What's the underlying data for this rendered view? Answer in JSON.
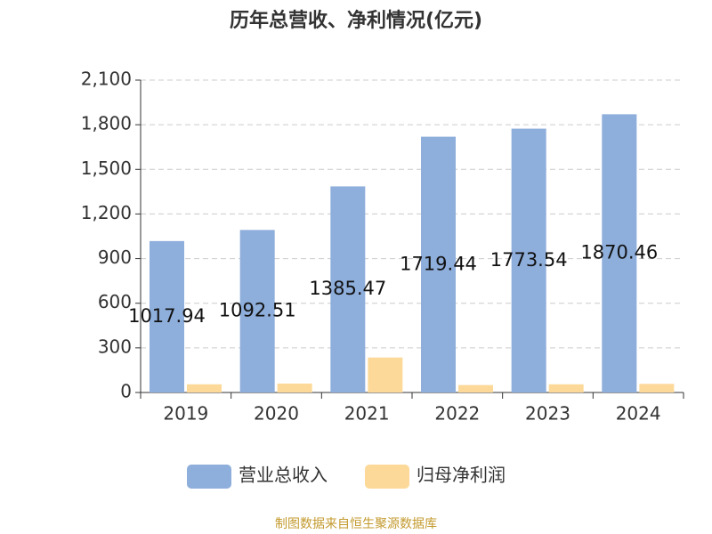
{
  "chart_data": {
    "type": "bar",
    "title": "历年总营收、净利情况(亿元)",
    "categories": [
      "2019",
      "2020",
      "2021",
      "2022",
      "2023",
      "2024"
    ],
    "series": [
      {
        "name": "营业总收入",
        "color": "#8eaedb",
        "values": [
          1017.94,
          1092.51,
          1385.47,
          1719.44,
          1773.54,
          1870.46
        ],
        "show_labels": true
      },
      {
        "name": "归母净利润",
        "color": "#fdd999",
        "values": [
          55,
          60,
          235,
          50,
          55,
          58
        ],
        "show_labels": false
      }
    ],
    "ylim": [
      0,
      2100
    ],
    "yticks": [
      0,
      300,
      600,
      900,
      {
        "value": 1200,
        "label": "1,200"
      },
      {
        "value": 1500,
        "label": "1,500"
      },
      {
        "value": 1800,
        "label": "1,800"
      },
      {
        "value": 2100,
        "label": "2,100"
      }
    ],
    "grid": true,
    "legend": "bottom",
    "source": "制图数据来自恒生聚源数据库"
  }
}
